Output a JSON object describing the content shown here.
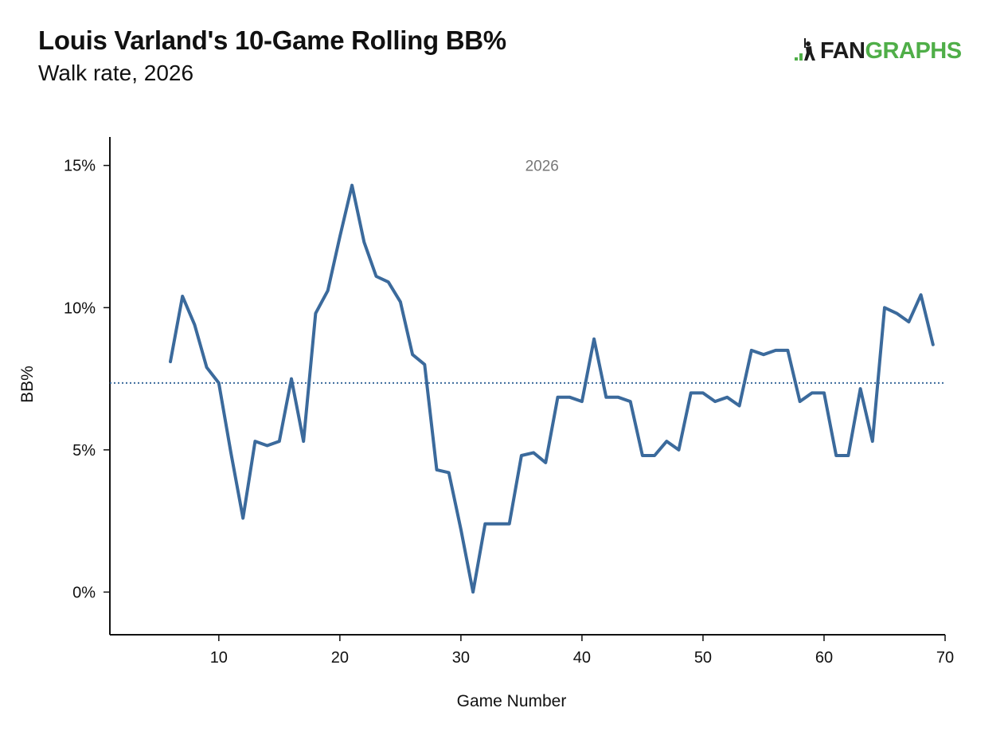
{
  "header": {
    "title": "Louis Varland's 10-Game Rolling BB%",
    "subtitle": "Walk rate, 2026"
  },
  "logo": {
    "text_dark": "FAN",
    "text_green": "GRAPHS",
    "icon": "batter-silhouette-icon"
  },
  "colors": {
    "line": "#3b6a9c",
    "average_line": "#3b6a9c",
    "axis": "#111111",
    "logo_green": "#4fae48"
  },
  "chart_data": {
    "type": "line",
    "title": "Louis Varland's 10-Game Rolling BB%",
    "subtitle": "Walk rate, 2026",
    "xlabel": "Game Number",
    "ylabel": "BB%",
    "xlim": [
      1,
      70
    ],
    "ylim": [
      -1.5,
      16
    ],
    "x_ticks": [
      10,
      20,
      30,
      40,
      50,
      60,
      70
    ],
    "y_ticks": [
      0,
      5,
      10,
      15
    ],
    "y_tick_labels": [
      "0%",
      "5%",
      "10%",
      "15%"
    ],
    "annotations": [
      {
        "text": "2026",
        "x": 36.7,
        "y": 15
      }
    ],
    "reference_line": {
      "style": "dotted",
      "y": 7.35
    },
    "series": [
      {
        "x": [
          6,
          7,
          8,
          9,
          10,
          11,
          12,
          13,
          14,
          15,
          16,
          17,
          18,
          19,
          20,
          21,
          22,
          23,
          24,
          25,
          26,
          27,
          28,
          29,
          30,
          31,
          32,
          33,
          34,
          35,
          36,
          37,
          38,
          39,
          40,
          41,
          42,
          43,
          44,
          45,
          46,
          47,
          48,
          49,
          50,
          51,
          52,
          53,
          54,
          55,
          56,
          57,
          58,
          59,
          60,
          61,
          62,
          63,
          64,
          65,
          66,
          67,
          68,
          69
        ],
        "values": [
          8.1,
          10.4,
          9.4,
          7.9,
          7.35,
          4.9,
          2.6,
          5.3,
          5.15,
          5.3,
          7.5,
          5.3,
          9.8,
          10.6,
          12.5,
          14.3,
          12.3,
          11.1,
          10.9,
          10.2,
          8.35,
          8.0,
          4.3,
          4.2,
          2.2,
          0.0,
          2.4,
          2.4,
          2.4,
          4.8,
          4.9,
          4.55,
          6.85,
          6.85,
          6.7,
          8.9,
          6.85,
          6.85,
          6.7,
          4.8,
          4.8,
          5.3,
          5.0,
          7.0,
          7.0,
          6.7,
          6.85,
          6.55,
          8.5,
          8.35,
          8.5,
          8.5,
          6.7,
          7.0,
          7.0,
          4.8,
          4.8,
          7.15,
          5.3,
          10.0,
          9.8,
          9.5,
          10.45,
          8.7
        ]
      }
    ]
  }
}
